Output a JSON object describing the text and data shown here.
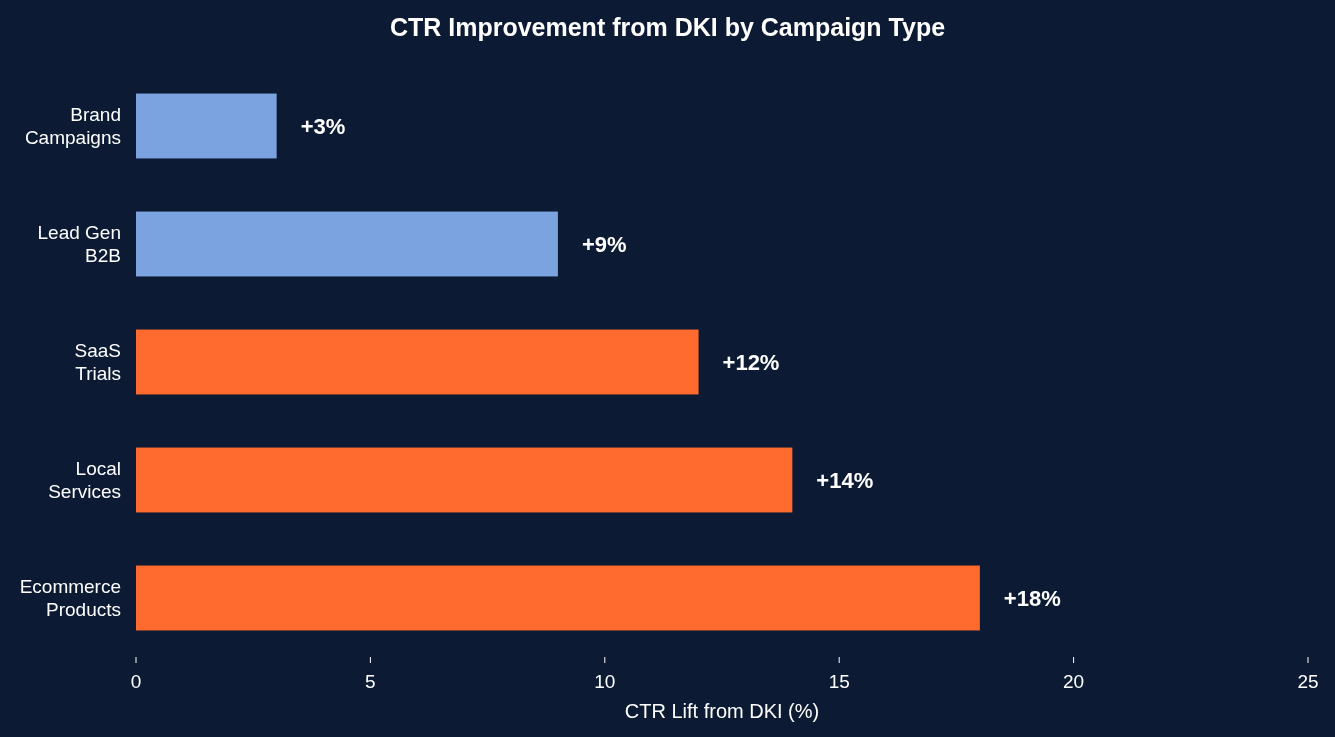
{
  "chart_data": {
    "type": "bar",
    "orientation": "horizontal",
    "title": "CTR Improvement from DKI by Campaign Type",
    "xlabel": "CTR Lift from DKI (%)",
    "categories": [
      "Brand Campaigns",
      "Lead Gen B2B",
      "SaaS Trials",
      "Local Services",
      "Ecommerce Products"
    ],
    "values": [
      3,
      9,
      12,
      14,
      18
    ],
    "colors": [
      "#7ba3e0",
      "#7ba3e0",
      "#ff6b2e",
      "#ff6b2e",
      "#ff6b2e"
    ],
    "value_labels": [
      "+3%",
      "+9%",
      "+12%",
      "+14%",
      "+18%"
    ],
    "xlim": [
      0,
      25
    ],
    "xticks": [
      0,
      5,
      10,
      15,
      20,
      25
    ],
    "grid": false
  }
}
